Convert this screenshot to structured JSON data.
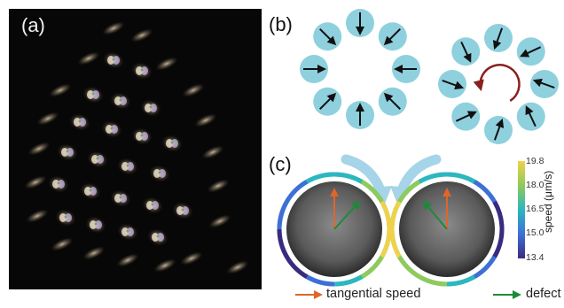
{
  "panels": {
    "a": {
      "label": "(a)"
    },
    "b": {
      "label": "(b)"
    },
    "c": {
      "label": "(c)"
    }
  },
  "colorbar": {
    "label": "speed (μm/s)",
    "ticks": [
      "19.8",
      "18.0",
      "16.5",
      "15.0",
      "13.4"
    ],
    "min": 13.4,
    "max": 19.8,
    "colors": [
      "#3b2a7f",
      "#3f6fd6",
      "#2cb7c0",
      "#8fca5a",
      "#f0d24a"
    ]
  },
  "legend": {
    "tangential": {
      "text": "tangential speed",
      "color": "#e0652a"
    },
    "defect": {
      "text": "defect",
      "color": "#1d8a3a"
    }
  },
  "colors": {
    "disk": "#8fd0de",
    "rotation_arrow": "#8a1f1f",
    "flow_arrow": "#a6d4e8"
  }
}
